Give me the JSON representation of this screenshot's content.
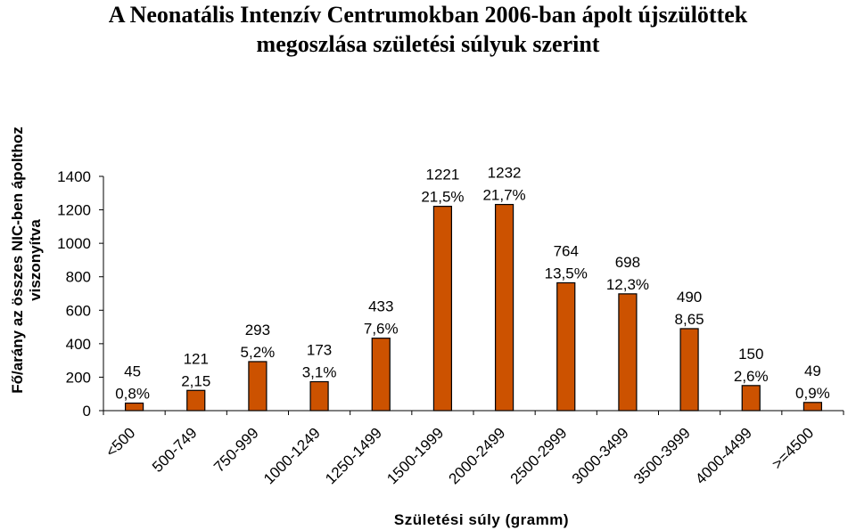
{
  "chart_data": {
    "type": "bar",
    "title_lines": [
      "A Neonatális Intenzív Centrumokban 2006-ban ápolt újszülöttek",
      "megoszlása születési súlyuk szerint"
    ],
    "ylabel_lines": [
      "Fő/arány az összes NIC-ben ápolthoz",
      "viszonyítva"
    ],
    "xlabel": "Születési súly (gramm)",
    "ylim": [
      0,
      1400
    ],
    "yticks": [
      "0",
      "200",
      "400",
      "600",
      "800",
      "1000",
      "1200",
      "1400"
    ],
    "grid": false,
    "legend": "none",
    "bar_color": "#cc5200",
    "categories": [
      "<500",
      "500-749",
      "750-999",
      "1000-1249",
      "1250-1499",
      "1500-1999",
      "2000-2499",
      "2500-2999",
      "3000-3499",
      "3500-3999",
      "4000-4499",
      ">=4500"
    ],
    "values": [
      45,
      121,
      293,
      173,
      433,
      1221,
      1232,
      764,
      698,
      490,
      150,
      49
    ],
    "value_labels": [
      "45",
      "121",
      "293",
      "173",
      "433",
      "1221",
      "1232",
      "764",
      "698",
      "490",
      "150",
      "49"
    ],
    "percent_labels": [
      "0,8%",
      "2,15",
      "5,2%",
      "3,1%",
      "7,6%",
      "21,5%",
      "21,7%",
      "13,5%",
      "12,3%",
      "8,65",
      "2,6%",
      "0,9%"
    ]
  }
}
